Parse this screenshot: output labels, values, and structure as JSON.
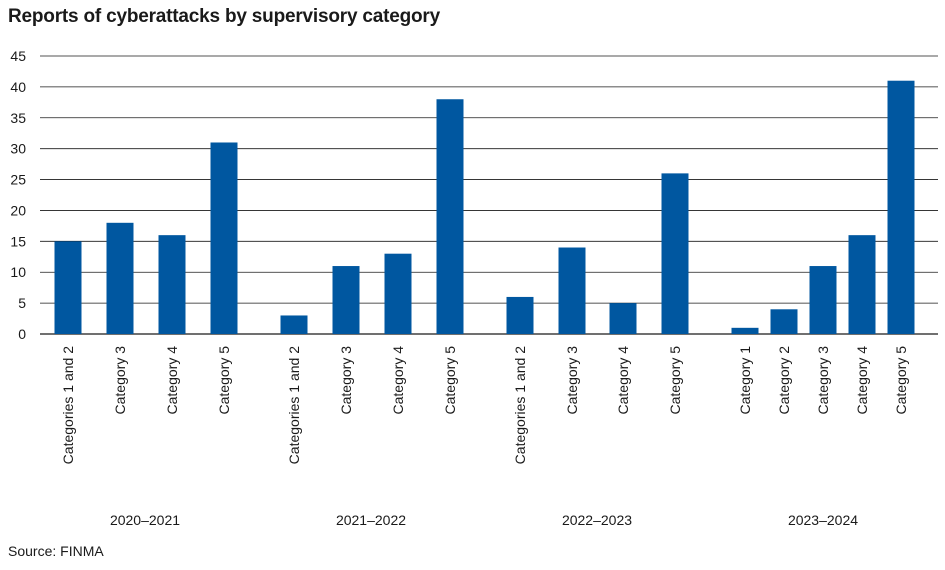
{
  "chart_data": {
    "type": "bar",
    "title": "Reports of cyberattacks by supervisory category",
    "source": "Source: FINMA",
    "xlabel": "",
    "ylabel": "",
    "ylim": [
      0,
      45
    ],
    "yticks": [
      0,
      5,
      10,
      15,
      20,
      25,
      30,
      35,
      40,
      45
    ],
    "grid": true,
    "bar_color": "#0057a0",
    "groups": [
      {
        "name": "2020–2021",
        "categories": [
          "Categories 1 and 2",
          "Category 3",
          "Category 4",
          "Category 5"
        ],
        "values": [
          15,
          18,
          16,
          31
        ]
      },
      {
        "name": "2021–2022",
        "categories": [
          "Categories 1 and 2",
          "Category 3",
          "Category 4",
          "Category 5"
        ],
        "values": [
          3,
          11,
          13,
          38
        ]
      },
      {
        "name": "2022–2023",
        "categories": [
          "Categories 1 and 2",
          "Category 3",
          "Category 4",
          "Category 5"
        ],
        "values": [
          6,
          14,
          5,
          26
        ]
      },
      {
        "name": "2023–2024",
        "categories": [
          "Category 1",
          "Category 2",
          "Category 3",
          "Category 4",
          "Category 5"
        ],
        "values": [
          1,
          4,
          11,
          16,
          41
        ]
      }
    ]
  }
}
